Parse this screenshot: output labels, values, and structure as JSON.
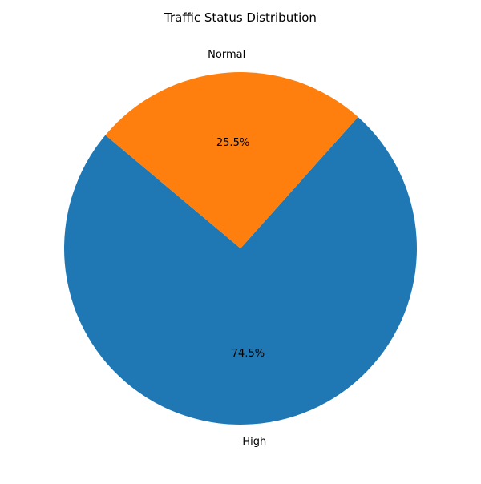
{
  "chart_data": {
    "type": "pie",
    "title": "Traffic Status Distribution",
    "slices": [
      {
        "label": "High",
        "value": 74.5,
        "percent_label": "74.5%",
        "color": "#1f77b4"
      },
      {
        "label": "Normal",
        "value": 25.5,
        "percent_label": "25.5%",
        "color": "#ff7f0e"
      }
    ],
    "start_angle_deg": 140,
    "direction": "counterclockwise"
  }
}
